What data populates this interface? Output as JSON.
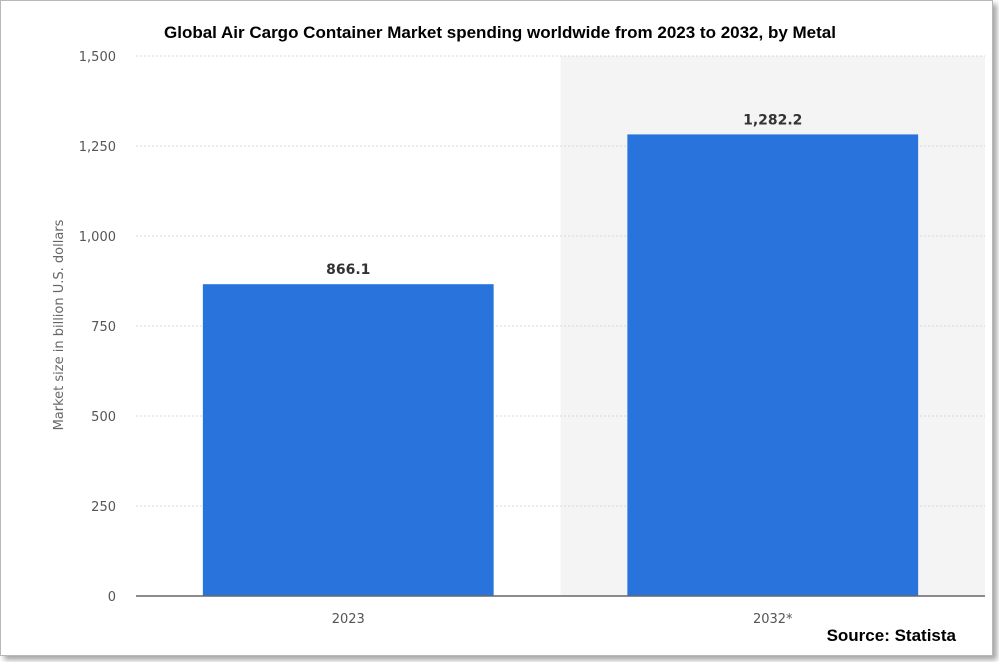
{
  "chart_data": {
    "type": "bar",
    "title": "Global Air Cargo Container Market spending worldwide from 2023 to 2032, by Metal",
    "categories": [
      "2023",
      "2032*"
    ],
    "values": [
      866.1,
      1282.2
    ],
    "value_labels": [
      "866.1",
      "1,282.2"
    ],
    "ylabel": "Market size in billion U.S. dollars",
    "xlabel": "",
    "ylim": [
      0,
      1500
    ],
    "y_ticks": [
      0,
      250,
      500,
      750,
      1000,
      1250,
      1500
    ],
    "y_tick_labels": [
      "0",
      "250",
      "500",
      "750",
      "1,000",
      "1,250",
      "1,500"
    ],
    "grid": true,
    "forecast_shaded_category": "2032*",
    "colors": {
      "bar": "#2874dc",
      "grid": "#d9d9d9",
      "shade": "#f4f4f4"
    }
  },
  "source": "Source: Statista"
}
